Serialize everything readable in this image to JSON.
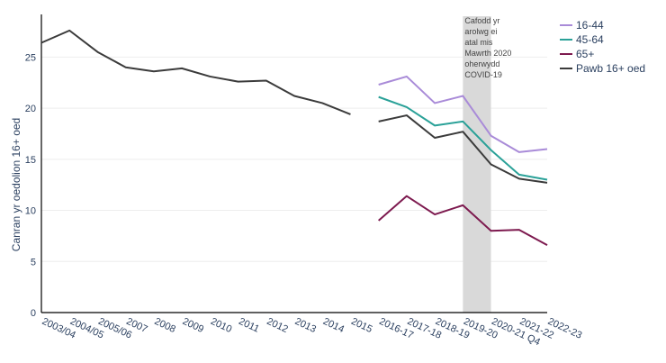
{
  "chart_data": {
    "type": "line",
    "ylabel": "Canran yr oedolion 16+ oed",
    "xlabel": "",
    "ylim": [
      0,
      29
    ],
    "yticks": [
      0,
      5,
      10,
      15,
      20,
      25
    ],
    "grid": true,
    "legend_position": "top-right",
    "categories": [
      "2003/04",
      "2004/05",
      "2005/06",
      "2007",
      "2008",
      "2009",
      "2010",
      "2011",
      "2012",
      "2013",
      "2014",
      "2015",
      "2016-17",
      "2017-18",
      "2018-19",
      "2019-20",
      "2020-21 Q4",
      "2021-22",
      "2022-23"
    ],
    "series": [
      {
        "name": "16-44",
        "color": "#a98bd8",
        "values": [
          null,
          null,
          null,
          null,
          null,
          null,
          null,
          null,
          null,
          null,
          null,
          null,
          22.3,
          23.1,
          20.5,
          21.2,
          17.3,
          15.7,
          16.0
        ]
      },
      {
        "name": "45-64",
        "color": "#2aa198",
        "values": [
          null,
          null,
          null,
          null,
          null,
          null,
          null,
          null,
          null,
          null,
          null,
          null,
          21.1,
          20.1,
          18.3,
          18.7,
          15.9,
          13.5,
          13.0
        ]
      },
      {
        "name": "65+",
        "color": "#7d1a4f",
        "values": [
          null,
          null,
          null,
          null,
          null,
          null,
          null,
          null,
          null,
          null,
          null,
          null,
          9.0,
          11.4,
          9.6,
          10.5,
          8.0,
          8.1,
          6.6
        ]
      },
      {
        "name": "Pawb 16+ oed",
        "color": "#3b3b3b",
        "values": [
          26.4,
          27.6,
          25.5,
          24.0,
          23.6,
          23.9,
          23.1,
          22.6,
          22.7,
          21.2,
          20.5,
          19.4,
          18.7,
          19.3,
          17.1,
          17.7,
          14.5,
          13.1,
          12.7
        ]
      }
    ],
    "annotation": {
      "text": [
        "Cafodd yr",
        "arolwg ei",
        "atal mis",
        "Mawrth 2020",
        "oherwydd",
        "COVID-19"
      ],
      "x_category": "2019-20",
      "shade_from": "2019-20",
      "shade_to": "2020-21 Q4",
      "shade_color": "#d9d9d9"
    }
  }
}
